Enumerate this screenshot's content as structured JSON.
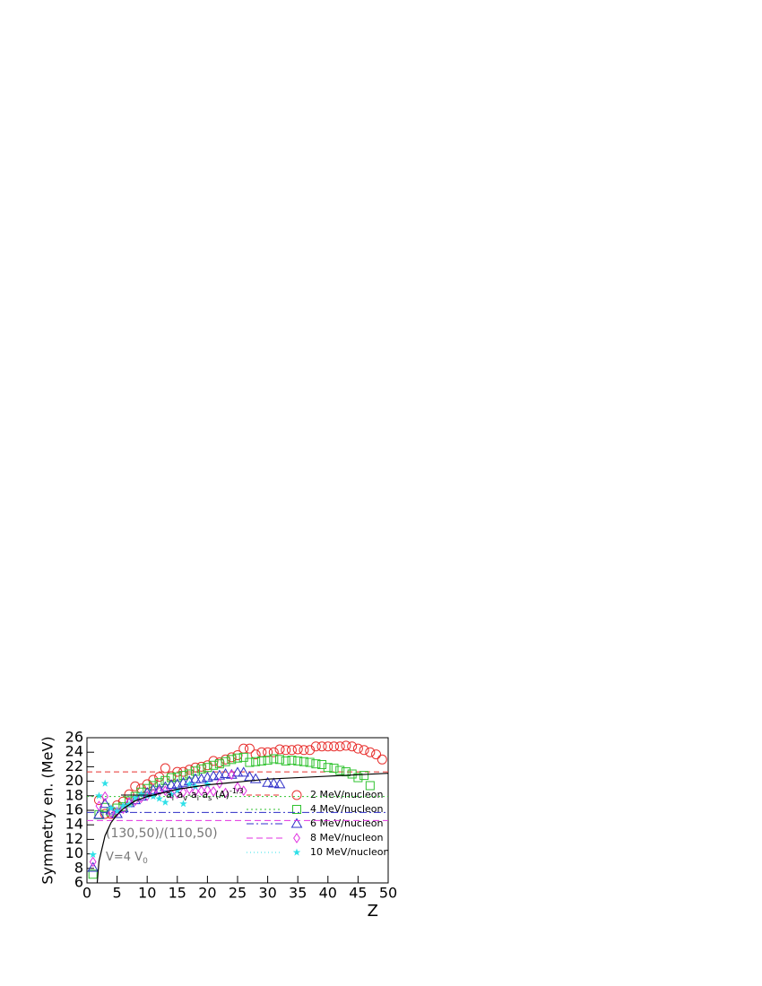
{
  "chart_data": {
    "type": "scatter",
    "x_label": "Z",
    "y_label": "Symmetry en. (MeV)",
    "xlim": [
      0,
      50
    ],
    "ylim": [
      6,
      26
    ],
    "xticks": [
      0,
      5,
      10,
      15,
      20,
      25,
      30,
      35,
      40,
      45,
      50
    ],
    "yticks": [
      6,
      8,
      10,
      12,
      14,
      16,
      18,
      20,
      22,
      24,
      26
    ],
    "annotations": [
      "(130,50)/(110,50)",
      "V=4 V",
      "0"
    ],
    "curve": {
      "label_parts": [
        "a",
        "i",
        " a",
        "v",
        "-a",
        "i",
        " a",
        "s",
        " (A)",
        "-1/3"
      ],
      "color": "#000000",
      "x": [
        1.7,
        2,
        3,
        4,
        5,
        6,
        8,
        10,
        15,
        20,
        25,
        30,
        35,
        40,
        45,
        50
      ],
      "values": [
        6,
        9,
        12.5,
        14.3,
        15.4,
        16.2,
        17.3,
        17.9,
        18.9,
        19.5,
        19.9,
        20.3,
        20.5,
        20.7,
        20.9,
        21.1
      ]
    },
    "series": [
      {
        "name": "2 MeV/nucleon",
        "color": "#e8312f",
        "marker": "circle",
        "line_dash": "6,4",
        "hline": 21.3,
        "x": [
          2,
          3,
          4,
          5,
          6,
          7,
          8,
          9,
          10,
          11,
          12,
          13,
          14,
          15,
          16,
          17,
          18,
          19,
          20,
          21,
          22,
          23,
          24,
          25,
          26,
          27,
          28,
          29,
          30,
          31,
          32,
          33,
          34,
          35,
          36,
          37,
          38,
          39,
          40,
          41,
          42,
          43,
          44,
          45,
          46,
          47,
          48,
          49
        ],
        "values": [
          17.4,
          15.5,
          15.5,
          16.7,
          17.2,
          18.2,
          19.3,
          19.0,
          19.6,
          20.2,
          20.6,
          21.8,
          20.7,
          21.3,
          21.3,
          21.6,
          21.9,
          22.0,
          22.2,
          22.8,
          22.6,
          23.0,
          23.3,
          23.6,
          24.5,
          24.5,
          23.7,
          24.0,
          24.0,
          24.0,
          24.4,
          24.3,
          24.3,
          24.4,
          24.3,
          24.3,
          24.8,
          24.8,
          24.8,
          24.8,
          24.8,
          24.9,
          24.8,
          24.5,
          24.3,
          24.0,
          23.7,
          23.0
        ]
      },
      {
        "name": "4 MeV/nucleon",
        "color": "#2fc22f",
        "marker": "square",
        "line_dash": "2,3",
        "hline": 17.9,
        "x": [
          1,
          2,
          3,
          4,
          5,
          6,
          7,
          8,
          9,
          10,
          11,
          12,
          13,
          14,
          15,
          16,
          17,
          18,
          19,
          20,
          21,
          22,
          23,
          24,
          25,
          26,
          27,
          28,
          29,
          30,
          31,
          32,
          33,
          34,
          35,
          36,
          37,
          38,
          39,
          40,
          41,
          42,
          43,
          44,
          45,
          46,
          47
        ],
        "values": [
          7.2,
          15.4,
          16.4,
          15.8,
          16.3,
          16.5,
          17.3,
          17.9,
          18.5,
          19.0,
          19.4,
          19.8,
          20.1,
          20.5,
          20.6,
          20.8,
          21.0,
          21.4,
          21.7,
          21.9,
          22.2,
          22.4,
          22.7,
          23.0,
          23.2,
          23.3,
          22.6,
          22.7,
          22.8,
          22.9,
          23.1,
          23.0,
          22.8,
          22.9,
          22.8,
          22.7,
          22.6,
          22.4,
          22.3,
          21.9,
          21.8,
          21.5,
          21.3,
          21.0,
          20.5,
          20.8,
          19.4
        ]
      },
      {
        "name": "6 MeV/nucleon",
        "color": "#2f2fc8",
        "marker": "triangle",
        "line_dash": "8,3,2,3",
        "hline": 15.7,
        "x": [
          1,
          2,
          3,
          4,
          5,
          6,
          7,
          8,
          9,
          10,
          11,
          12,
          13,
          14,
          15,
          16,
          17,
          18,
          19,
          20,
          21,
          22,
          23,
          24,
          25,
          26,
          27,
          28,
          30,
          31,
          32
        ],
        "values": [
          8.1,
          15.4,
          16.9,
          16.0,
          15.5,
          16.3,
          17.0,
          17.4,
          17.9,
          18.4,
          18.8,
          18.9,
          19.2,
          19.5,
          19.6,
          19.8,
          20.0,
          20.3,
          20.3,
          20.5,
          20.7,
          20.8,
          21.0,
          20.9,
          21.2,
          21.2,
          20.6,
          20.3,
          19.8,
          19.7,
          19.6
        ]
      },
      {
        "name": "8 MeV/nucleon",
        "color": "#e030e0",
        "marker": "diamond",
        "line_dash": "7,4",
        "hline": 14.6,
        "x": [
          1,
          2,
          3,
          4,
          5,
          6,
          7,
          8,
          9,
          10,
          11,
          12,
          13,
          14,
          15,
          16,
          17,
          18,
          19,
          20,
          21,
          22,
          23,
          24,
          25,
          26
        ],
        "values": [
          8.9,
          16.6,
          17.9,
          15.6,
          15.8,
          16.2,
          17.1,
          17.3,
          17.7,
          18.0,
          18.3,
          18.6,
          18.7,
          18.3,
          18.3,
          18.5,
          18.9,
          18.6,
          18.7,
          18.8,
          18.6,
          19.7,
          18.4,
          20.9,
          19.2,
          18.7
        ]
      },
      {
        "name": "10 MeV/nucleon",
        "color": "#2fe0e8",
        "marker": "star",
        "line_dash": "1,3",
        "x": [
          1,
          2,
          3,
          4,
          5,
          6,
          7,
          8,
          9,
          10,
          11,
          12,
          13,
          14,
          15,
          16,
          17,
          18,
          20
        ],
        "values": [
          9.9,
          18.0,
          19.7,
          16.3,
          15.9,
          16.6,
          16.8,
          17.7,
          18.2,
          18.0,
          17.9,
          17.6,
          17.1,
          18.2,
          18.7,
          16.9,
          19.6,
          19.3,
          19.6
        ]
      }
    ]
  }
}
